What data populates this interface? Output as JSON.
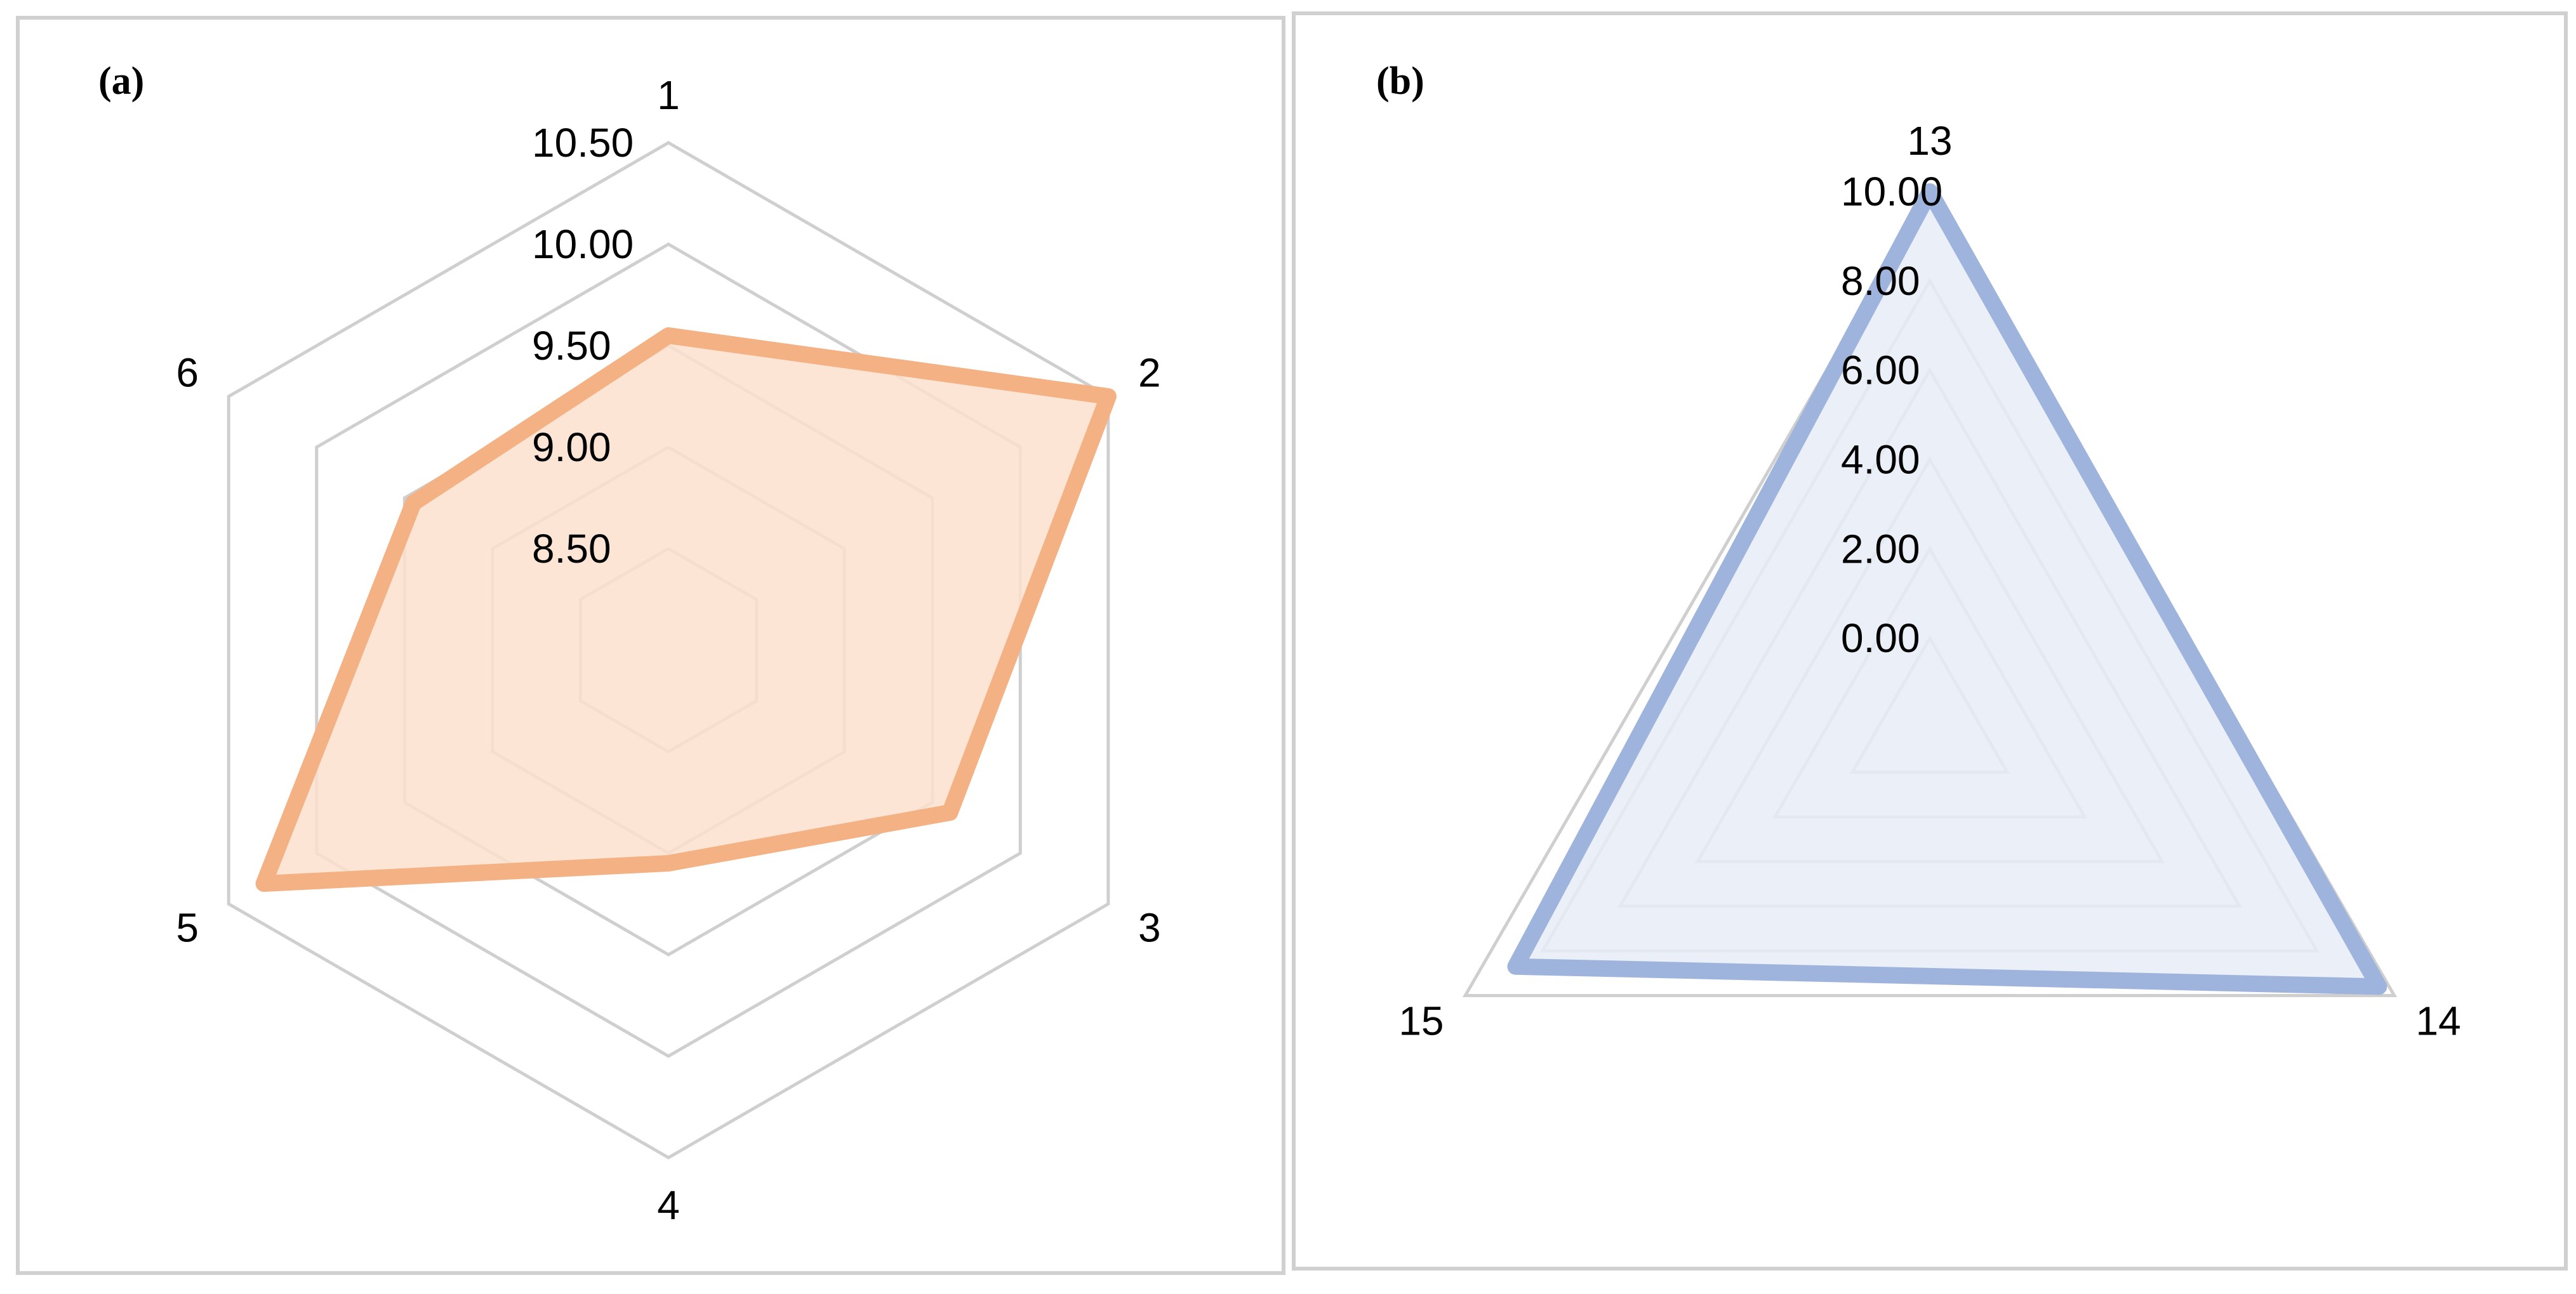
{
  "chart_data": [
    {
      "panel_label": "(a)",
      "type": "radar",
      "categories": [
        "1",
        "2",
        "3",
        "4",
        "5",
        "6"
      ],
      "tick_labels": [
        "8.50",
        "9.00",
        "9.50",
        "10.00",
        "10.50"
      ],
      "rlim": [
        8.0,
        10.5
      ],
      "series": [
        {
          "values": [
            9.55,
            10.5,
            9.6,
            9.05,
            10.3,
            9.45
          ]
        }
      ],
      "fill_color": "#fbe0cc",
      "line_color": "#f4b183",
      "grid": true
    },
    {
      "panel_label": "(b)",
      "type": "radar",
      "categories": [
        "13",
        "14",
        "15"
      ],
      "tick_labels": [
        "0.00",
        "2.00",
        "4.00",
        "6.00",
        "8.00",
        "10.00"
      ],
      "rlim": [
        -2.0,
        10.0
      ],
      "series": [
        {
          "values": [
            10.0,
            9.6,
            8.7
          ]
        }
      ],
      "fill_color": "#e6ecf7",
      "line_color": "#9fb4dc",
      "grid": true
    }
  ]
}
